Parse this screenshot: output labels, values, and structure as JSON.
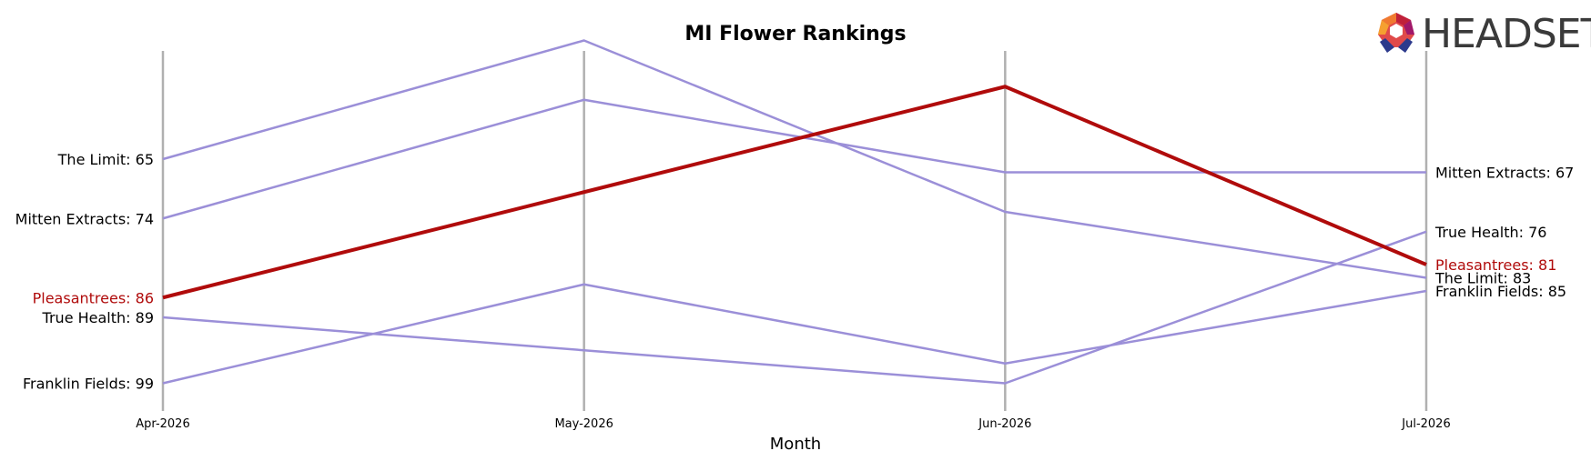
{
  "chart_data": {
    "type": "line",
    "title": "MI Flower Rankings",
    "xlabel": "Month",
    "ylabel": "",
    "categories": [
      "Apr-2026",
      "May-2026",
      "Jun-2026",
      "Jul-2026"
    ],
    "y_inverted": true,
    "ylim": [
      101,
      45
    ],
    "grid": false,
    "highlight_series": "Pleasantrees",
    "colors": {
      "highlight": "#b00b0b",
      "others": "#9b8fd8",
      "axis": "#b0b0b0"
    },
    "series": [
      {
        "name": "Pleasantrees",
        "values": [
          86,
          70,
          54,
          81
        ],
        "start_label": "Pleasantrees: 86",
        "end_label": "Pleasantrees: 81"
      },
      {
        "name": "The Limit",
        "values": [
          65,
          47,
          73,
          83
        ],
        "start_label": "The Limit: 65",
        "end_label": "The Limit: 83"
      },
      {
        "name": "Mitten Extracts",
        "values": [
          74,
          56,
          67,
          67
        ],
        "start_label": "Mitten Extracts: 74",
        "end_label": "Mitten Extracts: 67"
      },
      {
        "name": "True Health",
        "values": [
          89,
          94,
          99,
          76
        ],
        "start_label": "True Health: 89",
        "end_label": "True Health: 76"
      },
      {
        "name": "Franklin Fields",
        "values": [
          99,
          84,
          96,
          85
        ],
        "start_label": "Franklin Fields: 99",
        "end_label": "Franklin Fields: 85"
      }
    ]
  },
  "logo": {
    "text": "HEADSET",
    "icon": "headset-logo-icon"
  }
}
